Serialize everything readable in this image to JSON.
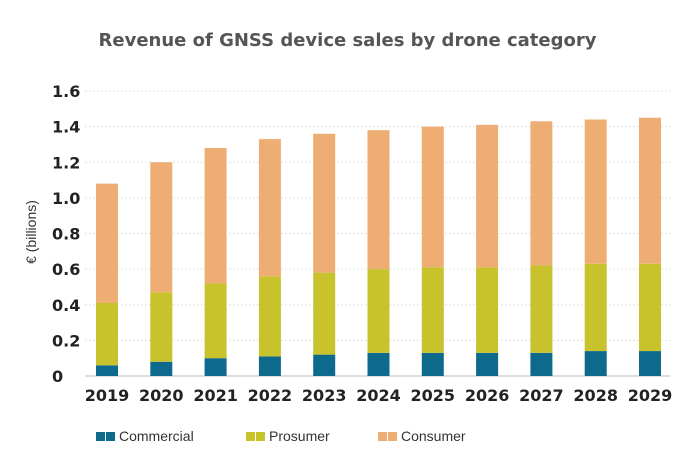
{
  "chart_data": {
    "type": "bar",
    "stacked": true,
    "title": "Revenue of GNSS device sales by drone category",
    "xlabel": "",
    "ylabel": "€ (billions)",
    "ylim": [
      0,
      1.6
    ],
    "yticks": [
      0,
      0.2,
      0.4,
      0.6,
      0.8,
      1.0,
      1.2,
      1.4,
      1.6
    ],
    "ytick_labels": [
      "0",
      "0.2",
      "0.4",
      "0.6",
      "0.8",
      "1.0",
      "1.2",
      "1.4",
      "1.6"
    ],
    "grid": true,
    "legend_position": "bottom",
    "categories": [
      "2019",
      "2020",
      "2021",
      "2022",
      "2023",
      "2024",
      "2025",
      "2026",
      "2027",
      "2028",
      "2029"
    ],
    "series": [
      {
        "name": "Commercial",
        "color": "#0e6a8c",
        "values": [
          0.06,
          0.08,
          0.1,
          0.11,
          0.12,
          0.13,
          0.13,
          0.13,
          0.13,
          0.14,
          0.14
        ]
      },
      {
        "name": "Prosumer",
        "color": "#c8c22c",
        "values": [
          0.35,
          0.39,
          0.42,
          0.45,
          0.46,
          0.47,
          0.48,
          0.48,
          0.49,
          0.49,
          0.49
        ]
      },
      {
        "name": "Consumer",
        "color": "#eeae73",
        "values": [
          0.67,
          0.73,
          0.76,
          0.77,
          0.78,
          0.78,
          0.79,
          0.8,
          0.81,
          0.81,
          0.82
        ]
      }
    ]
  }
}
